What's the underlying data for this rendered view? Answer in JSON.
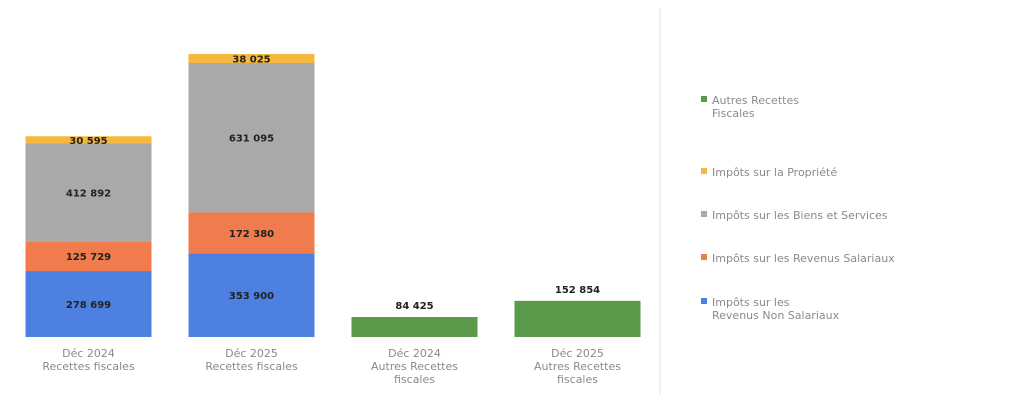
{
  "chart_data": {
    "type": "stacked_bar",
    "categories": [
      "Déc 2024\nRecettes fiscales",
      "Déc 2025\nRecettes fiscales",
      "Déc 2024\nAutres Recettes\nfiscales",
      "Déc 2025\nAutres Recettes\nfiscales"
    ],
    "series": [
      {
        "name": "Autres Recettes\nFiscales",
        "color": "#5b9a4b",
        "values": [
          null,
          null,
          84425,
          152854
        ],
        "value_labels": [
          null,
          null,
          "84 425",
          "152 854"
        ]
      },
      {
        "name": "Impôts sur la Propriété",
        "color": "#f5b73e",
        "values": [
          30595,
          38025,
          null,
          null
        ],
        "value_labels": [
          "30 595",
          "38 025",
          null,
          null
        ]
      },
      {
        "name": "Impôts sur les Biens et Services",
        "color": "#a9a9a9",
        "values": [
          412892,
          631095,
          null,
          null
        ],
        "value_labels": [
          "412 892",
          "631 095",
          null,
          null
        ]
      },
      {
        "name": "Impôts sur les Revenus Salariaux",
        "color": "#f07b4c",
        "values": [
          125729,
          172380,
          null,
          null
        ],
        "value_labels": [
          "125 729",
          "172 380",
          null,
          null
        ]
      },
      {
        "name": "Impôts sur les\nRevenus Non Salariaux",
        "color": "#4d80e0",
        "values": [
          278699,
          353900,
          null,
          null
        ],
        "value_labels": [
          "278 699",
          "353 900",
          null,
          null
        ]
      }
    ]
  }
}
